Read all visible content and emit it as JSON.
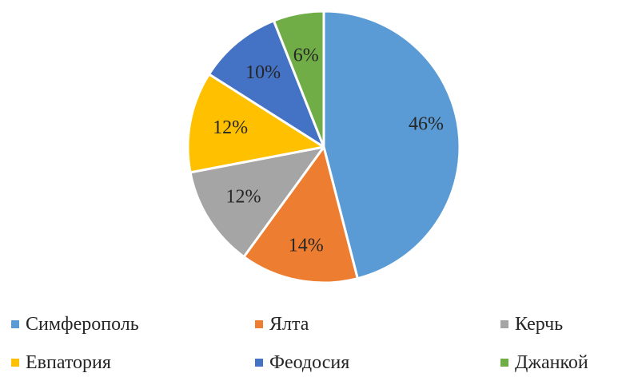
{
  "chart_data": {
    "type": "pie",
    "title": "",
    "categories": [
      "Симферополь",
      "Ялта",
      "Керчь",
      "Евпатория",
      "Феодосия",
      "Джанкой"
    ],
    "values": [
      46,
      14,
      12,
      12,
      10,
      6
    ],
    "labels": [
      "46%",
      "14%",
      "12%",
      "12%",
      "10%",
      "6%"
    ],
    "colors": [
      "#5B9BD5",
      "#ED7D31",
      "#A5A5A5",
      "#FFC000",
      "#4472C4",
      "#70AD47"
    ],
    "legend_position": "bottom",
    "start_angle": "top",
    "direction": "clockwise"
  }
}
